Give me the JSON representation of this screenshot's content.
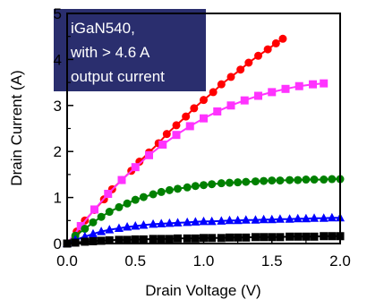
{
  "chart_data": {
    "type": "line",
    "title": "",
    "xlabel": "Drain Voltage (V)",
    "ylabel": "Drain Current (A)",
    "xlim": [
      0,
      2.0
    ],
    "ylim": [
      0,
      5
    ],
    "xticks": [
      "0.0",
      "0.5",
      "1.0",
      "1.5",
      "2.0"
    ],
    "yticks": [
      "0",
      "1",
      "2",
      "3",
      "4",
      "5"
    ],
    "grid": false,
    "legend": "none",
    "annotation": {
      "lines": [
        "iGaN540,",
        "with > 4.6 A",
        "output current"
      ],
      "background": "#2a2e6e"
    },
    "series": [
      {
        "color": "#ff0000",
        "marker": "circle",
        "points": [
          [
            0.0,
            0.0
          ],
          [
            0.07,
            0.26
          ],
          [
            0.13,
            0.5
          ],
          [
            0.2,
            0.73
          ],
          [
            0.27,
            0.96
          ],
          [
            0.33,
            1.18
          ],
          [
            0.4,
            1.38
          ],
          [
            0.47,
            1.58
          ],
          [
            0.53,
            1.78
          ],
          [
            0.6,
            1.98
          ],
          [
            0.67,
            2.18
          ],
          [
            0.73,
            2.38
          ],
          [
            0.8,
            2.57
          ],
          [
            0.87,
            2.76
          ],
          [
            0.93,
            2.94
          ],
          [
            1.0,
            3.12
          ],
          [
            1.07,
            3.29
          ],
          [
            1.13,
            3.46
          ],
          [
            1.2,
            3.62
          ],
          [
            1.27,
            3.78
          ],
          [
            1.33,
            3.93
          ],
          [
            1.4,
            4.08
          ],
          [
            1.47,
            4.22
          ],
          [
            1.53,
            4.35
          ],
          [
            1.58,
            4.45
          ]
        ]
      },
      {
        "color": "#ff33ff",
        "marker": "square",
        "points": [
          [
            0.0,
            0.0
          ],
          [
            0.1,
            0.38
          ],
          [
            0.2,
            0.74
          ],
          [
            0.3,
            1.08
          ],
          [
            0.4,
            1.38
          ],
          [
            0.5,
            1.66
          ],
          [
            0.6,
            1.92
          ],
          [
            0.7,
            2.15
          ],
          [
            0.8,
            2.36
          ],
          [
            0.9,
            2.55
          ],
          [
            1.0,
            2.72
          ],
          [
            1.1,
            2.87
          ],
          [
            1.2,
            3.0
          ],
          [
            1.3,
            3.11
          ],
          [
            1.4,
            3.21
          ],
          [
            1.5,
            3.29
          ],
          [
            1.6,
            3.36
          ],
          [
            1.7,
            3.42
          ],
          [
            1.8,
            3.46
          ],
          [
            1.88,
            3.48
          ]
        ]
      },
      {
        "color": "#008000",
        "marker": "circle",
        "points": [
          [
            0.0,
            0.0
          ],
          [
            0.06,
            0.17
          ],
          [
            0.13,
            0.32
          ],
          [
            0.19,
            0.46
          ],
          [
            0.25,
            0.58
          ],
          [
            0.31,
            0.69
          ],
          [
            0.38,
            0.79
          ],
          [
            0.44,
            0.87
          ],
          [
            0.5,
            0.95
          ],
          [
            0.56,
            1.01
          ],
          [
            0.63,
            1.07
          ],
          [
            0.69,
            1.12
          ],
          [
            0.75,
            1.16
          ],
          [
            0.81,
            1.19
          ],
          [
            0.88,
            1.22
          ],
          [
            0.94,
            1.25
          ],
          [
            1.0,
            1.27
          ],
          [
            1.06,
            1.29
          ],
          [
            1.13,
            1.31
          ],
          [
            1.19,
            1.32
          ],
          [
            1.25,
            1.33
          ],
          [
            1.31,
            1.34
          ],
          [
            1.38,
            1.35
          ],
          [
            1.44,
            1.36
          ],
          [
            1.5,
            1.37
          ],
          [
            1.56,
            1.37
          ],
          [
            1.63,
            1.38
          ],
          [
            1.69,
            1.38
          ],
          [
            1.75,
            1.39
          ],
          [
            1.81,
            1.39
          ],
          [
            1.88,
            1.39
          ],
          [
            1.94,
            1.4
          ],
          [
            2.0,
            1.4
          ]
        ]
      },
      {
        "color": "#0000ff",
        "marker": "triangle",
        "points": [
          [
            0.0,
            0.0
          ],
          [
            0.06,
            0.08
          ],
          [
            0.13,
            0.15
          ],
          [
            0.19,
            0.21
          ],
          [
            0.25,
            0.26
          ],
          [
            0.31,
            0.3
          ],
          [
            0.38,
            0.33
          ],
          [
            0.44,
            0.36
          ],
          [
            0.5,
            0.38
          ],
          [
            0.56,
            0.4
          ],
          [
            0.63,
            0.42
          ],
          [
            0.69,
            0.43
          ],
          [
            0.75,
            0.44
          ],
          [
            0.81,
            0.45
          ],
          [
            0.88,
            0.46
          ],
          [
            0.94,
            0.47
          ],
          [
            1.0,
            0.48
          ],
          [
            1.06,
            0.48
          ],
          [
            1.13,
            0.49
          ],
          [
            1.19,
            0.5
          ],
          [
            1.25,
            0.5
          ],
          [
            1.31,
            0.51
          ],
          [
            1.38,
            0.51
          ],
          [
            1.44,
            0.52
          ],
          [
            1.5,
            0.52
          ],
          [
            1.56,
            0.53
          ],
          [
            1.63,
            0.53
          ],
          [
            1.69,
            0.54
          ],
          [
            1.75,
            0.54
          ],
          [
            1.81,
            0.55
          ],
          [
            1.88,
            0.55
          ],
          [
            1.94,
            0.56
          ],
          [
            2.0,
            0.56
          ]
        ]
      },
      {
        "color": "#000000",
        "marker": "square",
        "points": [
          [
            0.0,
            0.0
          ],
          [
            0.06,
            0.02
          ],
          [
            0.13,
            0.04
          ],
          [
            0.19,
            0.05
          ],
          [
            0.25,
            0.06
          ],
          [
            0.31,
            0.07
          ],
          [
            0.38,
            0.08
          ],
          [
            0.44,
            0.08
          ],
          [
            0.5,
            0.09
          ],
          [
            0.56,
            0.09
          ],
          [
            0.63,
            0.1
          ],
          [
            0.69,
            0.1
          ],
          [
            0.75,
            0.1
          ],
          [
            0.81,
            0.11
          ],
          [
            0.88,
            0.11
          ],
          [
            0.94,
            0.11
          ],
          [
            1.0,
            0.12
          ],
          [
            1.06,
            0.12
          ],
          [
            1.13,
            0.12
          ],
          [
            1.19,
            0.13
          ],
          [
            1.25,
            0.13
          ],
          [
            1.31,
            0.13
          ],
          [
            1.38,
            0.14
          ],
          [
            1.44,
            0.14
          ],
          [
            1.5,
            0.14
          ],
          [
            1.56,
            0.14
          ],
          [
            1.63,
            0.15
          ],
          [
            1.69,
            0.15
          ],
          [
            1.75,
            0.15
          ],
          [
            1.81,
            0.15
          ],
          [
            1.88,
            0.16
          ],
          [
            1.94,
            0.16
          ],
          [
            2.0,
            0.16
          ]
        ]
      }
    ]
  }
}
